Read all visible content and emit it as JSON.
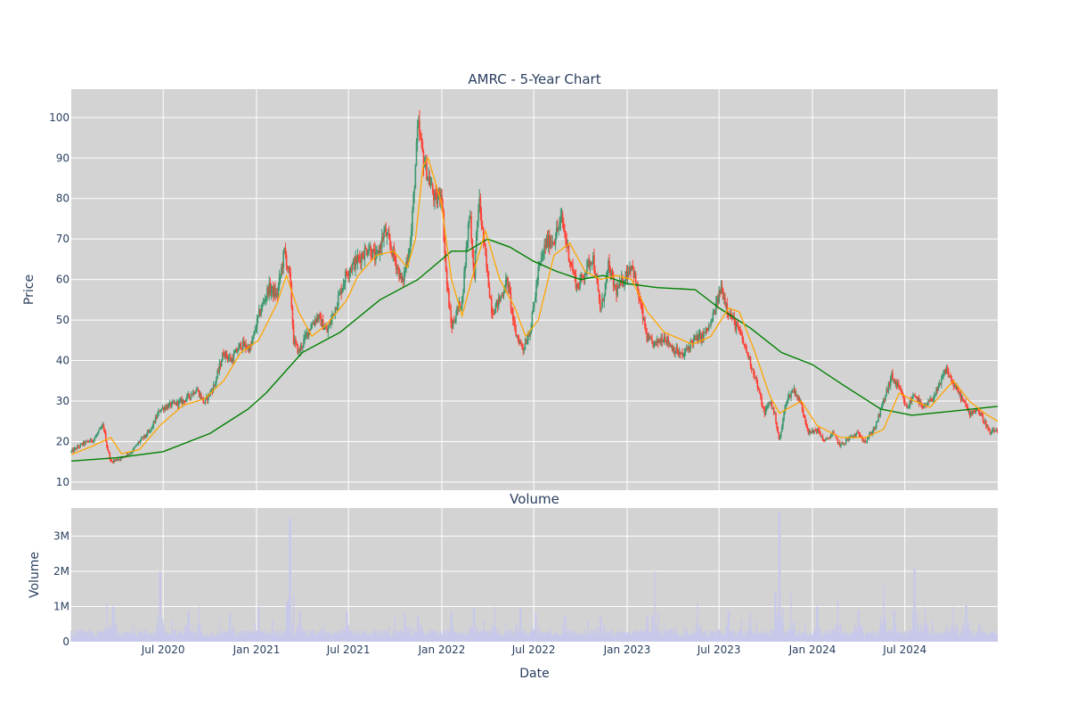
{
  "chart_data": [
    {
      "type": "candlestick",
      "title": "AMRC - 5-Year Chart",
      "ylabel": "Price",
      "ylim": [
        8,
        107
      ],
      "yticks": [
        10,
        20,
        30,
        40,
        50,
        60,
        70,
        80,
        90,
        100
      ],
      "x_range": [
        "2020-01-02",
        "2024-12-31"
      ],
      "grid": true,
      "background": "#d3d3d3",
      "colors": {
        "increasing": "#3d9970",
        "decreasing": "#ff4136",
        "short_ma": "#ffa500",
        "long_ma": "#008000"
      },
      "close_path": [
        [
          "2020-01-02",
          17.5
        ],
        [
          "2020-01-25",
          19.5
        ],
        [
          "2020-02-15",
          20.5
        ],
        [
          "2020-03-05",
          24
        ],
        [
          "2020-03-12",
          19
        ],
        [
          "2020-03-20",
          15
        ],
        [
          "2020-04-10",
          16
        ],
        [
          "2020-04-30",
          17.5
        ],
        [
          "2020-05-15",
          20
        ],
        [
          "2020-06-05",
          22.5
        ],
        [
          "2020-06-25",
          28
        ],
        [
          "2020-07-15",
          29
        ],
        [
          "2020-08-10",
          30
        ],
        [
          "2020-09-05",
          33
        ],
        [
          "2020-09-20",
          29.5
        ],
        [
          "2020-10-10",
          34
        ],
        [
          "2020-10-28",
          42
        ],
        [
          "2020-11-12",
          40
        ],
        [
          "2020-12-01",
          44
        ],
        [
          "2020-12-20",
          43
        ],
        [
          "2021-01-05",
          51
        ],
        [
          "2021-01-25",
          58
        ],
        [
          "2021-02-10",
          56
        ],
        [
          "2021-02-25",
          67
        ],
        [
          "2021-03-08",
          60
        ],
        [
          "2021-03-15",
          45
        ],
        [
          "2021-03-25",
          42
        ],
        [
          "2021-04-15",
          48
        ],
        [
          "2021-05-01",
          51
        ],
        [
          "2021-05-20",
          47
        ],
        [
          "2021-06-10",
          55
        ],
        [
          "2021-06-28",
          62
        ],
        [
          "2021-07-20",
          65
        ],
        [
          "2021-08-10",
          68
        ],
        [
          "2021-08-25",
          65
        ],
        [
          "2021-09-10",
          72
        ],
        [
          "2021-09-28",
          66
        ],
        [
          "2021-10-15",
          59
        ],
        [
          "2021-11-01",
          70
        ],
        [
          "2021-11-15",
          98
        ],
        [
          "2021-11-25",
          90
        ],
        [
          "2021-12-08",
          84
        ],
        [
          "2021-12-20",
          79
        ],
        [
          "2021-12-31",
          82
        ],
        [
          "2022-01-10",
          60
        ],
        [
          "2022-01-20",
          48
        ],
        [
          "2022-01-30",
          52
        ],
        [
          "2022-02-10",
          55
        ],
        [
          "2022-02-25",
          78
        ],
        [
          "2022-03-05",
          60
        ],
        [
          "2022-03-15",
          80
        ],
        [
          "2022-03-28",
          65
        ],
        [
          "2022-04-10",
          52
        ],
        [
          "2022-04-25",
          55
        ],
        [
          "2022-05-10",
          60
        ],
        [
          "2022-05-25",
          47
        ],
        [
          "2022-06-10",
          43
        ],
        [
          "2022-06-25",
          48
        ],
        [
          "2022-07-10",
          62
        ],
        [
          "2022-07-25",
          69
        ],
        [
          "2022-08-10",
          70
        ],
        [
          "2022-08-25",
          75
        ],
        [
          "2022-09-10",
          65
        ],
        [
          "2022-09-25",
          58
        ],
        [
          "2022-10-10",
          62
        ],
        [
          "2022-10-25",
          66
        ],
        [
          "2022-11-10",
          52
        ],
        [
          "2022-11-25",
          63
        ],
        [
          "2022-12-10",
          57
        ],
        [
          "2022-12-25",
          60
        ],
        [
          "2023-01-10",
          64
        ],
        [
          "2023-01-25",
          55
        ],
        [
          "2023-02-10",
          45
        ],
        [
          "2023-02-25",
          44
        ],
        [
          "2023-03-15",
          46
        ],
        [
          "2023-04-01",
          43
        ],
        [
          "2023-04-20",
          41
        ],
        [
          "2023-05-10",
          45
        ],
        [
          "2023-05-30",
          46
        ],
        [
          "2023-06-15",
          49
        ],
        [
          "2023-07-05",
          58
        ],
        [
          "2023-07-20",
          52
        ],
        [
          "2023-08-10",
          47
        ],
        [
          "2023-08-25",
          42
        ],
        [
          "2023-09-10",
          36
        ],
        [
          "2023-09-28",
          27
        ],
        [
          "2023-10-10",
          30
        ],
        [
          "2023-10-20",
          26
        ],
        [
          "2023-10-28",
          20
        ],
        [
          "2023-11-10",
          30
        ],
        [
          "2023-11-25",
          33
        ],
        [
          "2023-12-10",
          29
        ],
        [
          "2023-12-25",
          22
        ],
        [
          "2024-01-10",
          23
        ],
        [
          "2024-01-25",
          20
        ],
        [
          "2024-02-10",
          22
        ],
        [
          "2024-02-25",
          19
        ],
        [
          "2024-03-15",
          21
        ],
        [
          "2024-04-01",
          22
        ],
        [
          "2024-04-15",
          20
        ],
        [
          "2024-05-05",
          24
        ],
        [
          "2024-05-20",
          30
        ],
        [
          "2024-06-05",
          36
        ],
        [
          "2024-06-20",
          33
        ],
        [
          "2024-07-05",
          28
        ],
        [
          "2024-07-20",
          32
        ],
        [
          "2024-08-05",
          28
        ],
        [
          "2024-08-20",
          30
        ],
        [
          "2024-09-05",
          33
        ],
        [
          "2024-09-20",
          38
        ],
        [
          "2024-10-05",
          34
        ],
        [
          "2024-10-20",
          31
        ],
        [
          "2024-11-05",
          27
        ],
        [
          "2024-11-20",
          28
        ],
        [
          "2024-12-05",
          25
        ],
        [
          "2024-12-15",
          22
        ],
        [
          "2024-12-31",
          23
        ]
      ],
      "short_ma": [
        [
          "2020-01-02",
          16.8
        ],
        [
          "2020-02-15",
          19
        ],
        [
          "2020-03-20",
          21
        ],
        [
          "2020-04-10",
          17
        ],
        [
          "2020-05-15",
          18
        ],
        [
          "2020-06-25",
          24
        ],
        [
          "2020-08-10",
          29
        ],
        [
          "2020-09-20",
          30.5
        ],
        [
          "2020-10-28",
          35
        ],
        [
          "2020-12-01",
          42
        ],
        [
          "2021-01-05",
          45
        ],
        [
          "2021-02-10",
          54
        ],
        [
          "2021-03-01",
          61
        ],
        [
          "2021-03-25",
          52
        ],
        [
          "2021-04-20",
          46
        ],
        [
          "2021-05-20",
          49
        ],
        [
          "2021-06-28",
          55
        ],
        [
          "2021-07-20",
          61
        ],
        [
          "2021-08-25",
          66
        ],
        [
          "2021-09-28",
          67
        ],
        [
          "2021-10-25",
          63
        ],
        [
          "2021-11-10",
          70
        ],
        [
          "2021-11-25",
          88
        ],
        [
          "2021-12-05",
          90
        ],
        [
          "2021-12-31",
          79
        ],
        [
          "2022-01-20",
          60
        ],
        [
          "2022-02-10",
          51
        ],
        [
          "2022-03-05",
          62
        ],
        [
          "2022-03-28",
          72
        ],
        [
          "2022-04-25",
          60
        ],
        [
          "2022-05-25",
          53
        ],
        [
          "2022-06-15",
          46
        ],
        [
          "2022-07-10",
          50
        ],
        [
          "2022-08-10",
          66
        ],
        [
          "2022-09-10",
          69
        ],
        [
          "2022-10-10",
          62
        ],
        [
          "2022-11-10",
          60
        ],
        [
          "2022-12-10",
          61
        ],
        [
          "2023-01-10",
          60
        ],
        [
          "2023-02-10",
          52
        ],
        [
          "2023-03-15",
          47
        ],
        [
          "2023-05-10",
          44
        ],
        [
          "2023-06-15",
          46
        ],
        [
          "2023-07-20",
          53
        ],
        [
          "2023-08-10",
          52
        ],
        [
          "2023-09-10",
          42
        ],
        [
          "2023-10-10",
          31
        ],
        [
          "2023-10-28",
          27
        ],
        [
          "2023-12-10",
          30
        ],
        [
          "2024-01-10",
          24
        ],
        [
          "2024-02-25",
          21
        ],
        [
          "2024-04-15",
          21
        ],
        [
          "2024-05-20",
          23
        ],
        [
          "2024-06-20",
          32
        ],
        [
          "2024-07-20",
          30
        ],
        [
          "2024-08-20",
          28.5
        ],
        [
          "2024-09-20",
          33
        ],
        [
          "2024-10-05",
          35
        ],
        [
          "2024-11-05",
          30
        ],
        [
          "2024-12-05",
          27
        ],
        [
          "2024-12-31",
          25
        ]
      ],
      "long_ma": [
        [
          "2020-01-02",
          15.2
        ],
        [
          "2020-04-01",
          16
        ],
        [
          "2020-07-01",
          17.5
        ],
        [
          "2020-10-01",
          22
        ],
        [
          "2020-12-15",
          28
        ],
        [
          "2021-01-20",
          32
        ],
        [
          "2021-04-01",
          42
        ],
        [
          "2021-06-15",
          47
        ],
        [
          "2021-09-01",
          55
        ],
        [
          "2021-11-15",
          60
        ],
        [
          "2022-01-20",
          67
        ],
        [
          "2022-02-20",
          67
        ],
        [
          "2022-04-01",
          70
        ],
        [
          "2022-05-15",
          68
        ],
        [
          "2022-07-01",
          64.5
        ],
        [
          "2022-08-15",
          62
        ],
        [
          "2022-10-01",
          60
        ],
        [
          "2022-11-15",
          61
        ],
        [
          "2023-01-01",
          59
        ],
        [
          "2023-03-01",
          58
        ],
        [
          "2023-05-15",
          57.5
        ],
        [
          "2023-07-01",
          53
        ],
        [
          "2023-09-01",
          48
        ],
        [
          "2023-11-01",
          42
        ],
        [
          "2024-01-01",
          39
        ],
        [
          "2024-03-01",
          34
        ],
        [
          "2024-05-15",
          28
        ],
        [
          "2024-07-15",
          26.5
        ],
        [
          "2024-10-01",
          27.5
        ],
        [
          "2024-12-31",
          28.7
        ]
      ]
    },
    {
      "type": "bar",
      "title": "Volume",
      "xlabel": "Date",
      "ylabel": "Volume",
      "ylim": [
        0,
        3800000
      ],
      "yticks": [
        0,
        1000000,
        2000000,
        3000000
      ],
      "ytick_labels": [
        "0",
        "1M",
        "2M",
        "3M"
      ],
      "x_range": [
        "2020-01-02",
        "2024-12-31"
      ],
      "xtick_dates": [
        "2020-07-01",
        "2021-01-01",
        "2021-07-01",
        "2022-01-01",
        "2022-07-01",
        "2023-01-01",
        "2023-07-01",
        "2024-01-01",
        "2024-07-01"
      ],
      "xtick_labels": [
        "Jul 2020",
        "Jan 2021",
        "Jul 2021",
        "Jan 2022",
        "Jul 2022",
        "Jan 2023",
        "Jul 2023",
        "Jan 2024",
        "Jul 2024"
      ],
      "color": "#c8c8ea",
      "spikes": [
        [
          "2020-03-12",
          1100000
        ],
        [
          "2020-03-25",
          1000000
        ],
        [
          "2020-06-25",
          2000000
        ],
        [
          "2020-08-20",
          900000
        ],
        [
          "2020-09-10",
          1000000
        ],
        [
          "2020-11-10",
          800000
        ],
        [
          "2021-01-05",
          1000000
        ],
        [
          "2021-03-08",
          3500000
        ],
        [
          "2021-03-28",
          900000
        ],
        [
          "2021-06-28",
          850000
        ],
        [
          "2021-10-20",
          800000
        ],
        [
          "2021-11-15",
          750000
        ],
        [
          "2022-01-20",
          850000
        ],
        [
          "2022-03-05",
          950000
        ],
        [
          "2022-04-15",
          1000000
        ],
        [
          "2022-06-05",
          950000
        ],
        [
          "2022-07-05",
          800000
        ],
        [
          "2022-09-01",
          750000
        ],
        [
          "2022-11-10",
          700000
        ],
        [
          "2023-02-10",
          700000
        ],
        [
          "2023-02-25",
          2000000
        ],
        [
          "2023-05-20",
          1100000
        ],
        [
          "2023-07-20",
          900000
        ],
        [
          "2023-09-01",
          800000
        ],
        [
          "2023-10-20",
          1400000
        ],
        [
          "2023-10-28",
          3700000
        ],
        [
          "2023-11-20",
          1400000
        ],
        [
          "2024-01-10",
          1000000
        ],
        [
          "2024-02-20",
          1200000
        ],
        [
          "2024-04-01",
          900000
        ],
        [
          "2024-05-20",
          1600000
        ],
        [
          "2024-06-10",
          900000
        ],
        [
          "2024-07-20",
          2100000
        ],
        [
          "2024-08-10",
          1000000
        ],
        [
          "2024-10-05",
          1000000
        ],
        [
          "2024-10-30",
          1050000
        ],
        [
          "2024-11-25",
          500000
        ]
      ]
    }
  ]
}
